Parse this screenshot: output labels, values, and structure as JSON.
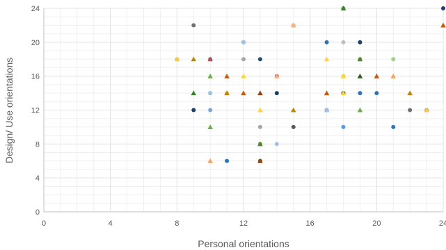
{
  "chart_data": {
    "type": "scatter",
    "xlabel": "Personal orientations",
    "ylabel": "Design/ Use orientations",
    "xlim": [
      0,
      24
    ],
    "ylim": [
      0,
      24
    ],
    "x_ticks": [
      0,
      4,
      8,
      12,
      16,
      20,
      24
    ],
    "y_ticks": [
      0,
      4,
      8,
      12,
      16,
      20,
      24
    ],
    "minor_grid_step": 1,
    "grid": true,
    "points": [
      {
        "x": 8,
        "y": 18,
        "shape": "circle",
        "color": "#f2c94c"
      },
      {
        "x": 8,
        "y": 18,
        "shape": "triangle",
        "color": "#f2c94c"
      },
      {
        "x": 9,
        "y": 22,
        "shape": "circle",
        "color": "#707070"
      },
      {
        "x": 9,
        "y": 18,
        "shape": "triangle",
        "color": "#b8860b"
      },
      {
        "x": 9,
        "y": 14,
        "shape": "triangle",
        "color": "#3a7d2c"
      },
      {
        "x": 9,
        "y": 12,
        "shape": "circle",
        "color": "#1f3c6e"
      },
      {
        "x": 10,
        "y": 18,
        "shape": "circle",
        "color": "#4f81bd"
      },
      {
        "x": 10,
        "y": 18,
        "shape": "triangle",
        "color": "#c0504d"
      },
      {
        "x": 10,
        "y": 16,
        "shape": "triangle",
        "color": "#70ad47"
      },
      {
        "x": 10,
        "y": 14,
        "shape": "circle",
        "color": "#70ad47"
      },
      {
        "x": 10,
        "y": 14,
        "shape": "circle",
        "color": "#9dc3e6"
      },
      {
        "x": 10,
        "y": 12,
        "shape": "circle",
        "color": "#7ba7d0"
      },
      {
        "x": 10,
        "y": 10,
        "shape": "triangle",
        "color": "#70ad47"
      },
      {
        "x": 10,
        "y": 6,
        "shape": "triangle",
        "color": "#f4a261"
      },
      {
        "x": 11,
        "y": 16,
        "shape": "triangle",
        "color": "#c55a11"
      },
      {
        "x": 11,
        "y": 14,
        "shape": "circle",
        "color": "#f2c94c"
      },
      {
        "x": 11,
        "y": 14,
        "shape": "triangle",
        "color": "#b8860b"
      },
      {
        "x": 11,
        "y": 6,
        "shape": "circle",
        "color": "#2e75b6"
      },
      {
        "x": 12,
        "y": 20,
        "shape": "circle",
        "color": "#2e75b6"
      },
      {
        "x": 12,
        "y": 20,
        "shape": "circle",
        "color": "#9dc3e6"
      },
      {
        "x": 12,
        "y": 18,
        "shape": "circle",
        "color": "#a5a5a5"
      },
      {
        "x": 12,
        "y": 16,
        "shape": "triangle",
        "color": "#ffd43b"
      },
      {
        "x": 12,
        "y": 14,
        "shape": "triangle",
        "color": "#c55a11"
      },
      {
        "x": 13,
        "y": 18,
        "shape": "circle",
        "color": "#1f4e79"
      },
      {
        "x": 13,
        "y": 14,
        "shape": "triangle",
        "color": "#8b4513"
      },
      {
        "x": 13,
        "y": 12,
        "shape": "triangle",
        "color": "#ffd43b"
      },
      {
        "x": 13,
        "y": 10,
        "shape": "circle",
        "color": "#a5a5a5"
      },
      {
        "x": 13,
        "y": 8,
        "shape": "circle",
        "color": "#70ad47"
      },
      {
        "x": 13,
        "y": 8,
        "shape": "triangle",
        "color": "#548235"
      },
      {
        "x": 13,
        "y": 6,
        "shape": "circle",
        "color": "#7f6000"
      },
      {
        "x": 13,
        "y": 6,
        "shape": "triangle",
        "color": "#8b4513"
      },
      {
        "x": 14,
        "y": 16,
        "shape": "circle",
        "color": "#c0504d"
      },
      {
        "x": 14,
        "y": 16,
        "shape": "triangle",
        "color": "#f4b183"
      },
      {
        "x": 14,
        "y": 14,
        "shape": "circle",
        "color": "#1f3c6e"
      },
      {
        "x": 14,
        "y": 8,
        "shape": "circle",
        "color": "#9dc3e6"
      },
      {
        "x": 15,
        "y": 22,
        "shape": "circle",
        "color": "#f4b183"
      },
      {
        "x": 15,
        "y": 22,
        "shape": "triangle",
        "color": "#f4b183"
      },
      {
        "x": 15,
        "y": 12,
        "shape": "triangle",
        "color": "#b8860b"
      },
      {
        "x": 15,
        "y": 10,
        "shape": "circle",
        "color": "#595959"
      },
      {
        "x": 17,
        "y": 20,
        "shape": "circle",
        "color": "#2e75b6"
      },
      {
        "x": 17,
        "y": 18,
        "shape": "triangle",
        "color": "#ffd43b"
      },
      {
        "x": 17,
        "y": 14,
        "shape": "triangle",
        "color": "#c55a11"
      },
      {
        "x": 17,
        "y": 12,
        "shape": "circle",
        "color": "#a5a5a5"
      },
      {
        "x": 17,
        "y": 12,
        "shape": "triangle",
        "color": "#9dc3e6"
      },
      {
        "x": 18,
        "y": 24,
        "shape": "circle",
        "color": "#70ad47"
      },
      {
        "x": 18,
        "y": 24,
        "shape": "triangle",
        "color": "#3a7d2c"
      },
      {
        "x": 18,
        "y": 20,
        "shape": "circle",
        "color": "#bfbfbf"
      },
      {
        "x": 18,
        "y": 16,
        "shape": "circle",
        "color": "#f2c94c"
      },
      {
        "x": 18,
        "y": 16,
        "shape": "triangle",
        "color": "#ffd43b"
      },
      {
        "x": 18,
        "y": 14,
        "shape": "circle",
        "color": "#1f3c6e"
      },
      {
        "x": 18,
        "y": 14,
        "shape": "triangle",
        "color": "#ffd43b"
      },
      {
        "x": 18,
        "y": 10,
        "shape": "circle",
        "color": "#5b9bd5"
      },
      {
        "x": 19,
        "y": 20,
        "shape": "circle",
        "color": "#1f3c6e"
      },
      {
        "x": 19,
        "y": 18,
        "shape": "circle",
        "color": "#70ad47"
      },
      {
        "x": 19,
        "y": 18,
        "shape": "triangle",
        "color": "#548235"
      },
      {
        "x": 19,
        "y": 16,
        "shape": "triangle",
        "color": "#2f5d1e"
      },
      {
        "x": 19,
        "y": 14,
        "shape": "circle",
        "color": "#2e75b6"
      },
      {
        "x": 19,
        "y": 12,
        "shape": "triangle",
        "color": "#70ad47"
      },
      {
        "x": 20,
        "y": 16,
        "shape": "triangle",
        "color": "#c55a11"
      },
      {
        "x": 20,
        "y": 14,
        "shape": "circle",
        "color": "#2e75b6"
      },
      {
        "x": 21,
        "y": 18,
        "shape": "circle",
        "color": "#70ad47"
      },
      {
        "x": 21,
        "y": 18,
        "shape": "circle",
        "color": "#a9d18e"
      },
      {
        "x": 21,
        "y": 16,
        "shape": "triangle",
        "color": "#f4a261"
      },
      {
        "x": 21,
        "y": 10,
        "shape": "circle",
        "color": "#2e75b6"
      },
      {
        "x": 22,
        "y": 14,
        "shape": "triangle",
        "color": "#b8860b"
      },
      {
        "x": 22,
        "y": 12,
        "shape": "circle",
        "color": "#707070"
      },
      {
        "x": 23,
        "y": 12,
        "shape": "circle",
        "color": "#a5a5a5"
      },
      {
        "x": 23,
        "y": 12,
        "shape": "triangle",
        "color": "#f2c94c"
      },
      {
        "x": 24,
        "y": 24,
        "shape": "circle",
        "color": "#1f3c6e"
      },
      {
        "x": 24,
        "y": 22,
        "shape": "triangle",
        "color": "#c55a11"
      }
    ]
  }
}
